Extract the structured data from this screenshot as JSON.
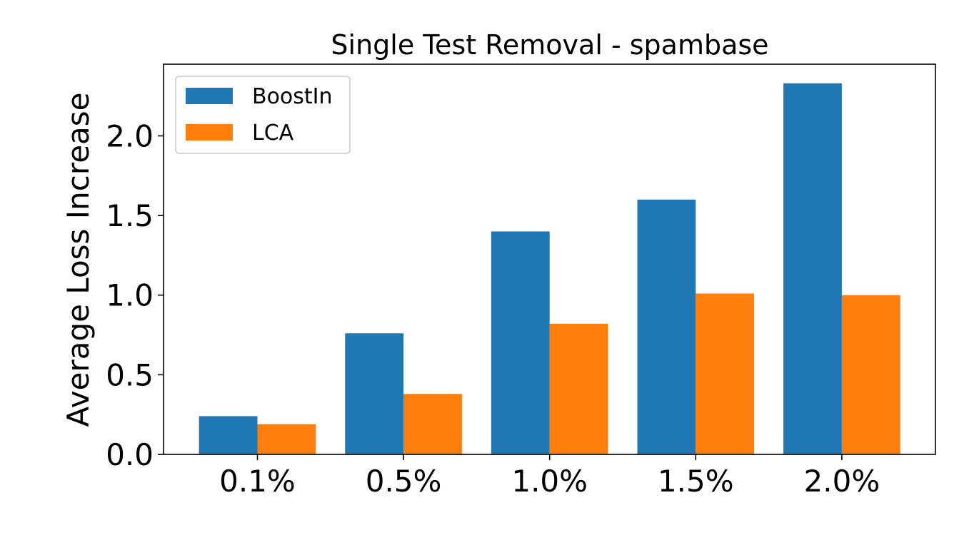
{
  "chart_data": {
    "type": "bar",
    "title": "Single Test Removal - spambase",
    "xlabel": "",
    "ylabel": "Average Loss Increase",
    "categories": [
      "0.1%",
      "0.5%",
      "1.0%",
      "1.5%",
      "2.0%"
    ],
    "series": [
      {
        "name": "BoostIn",
        "color": "#1f77b4",
        "values": [
          0.24,
          0.76,
          1.4,
          1.6,
          2.33
        ]
      },
      {
        "name": "LCA",
        "color": "#ff7f0e",
        "values": [
          0.19,
          0.38,
          0.82,
          1.01,
          1.0
        ]
      }
    ],
    "ylim": [
      0,
      2.45
    ],
    "yticks": [
      0.0,
      0.5,
      1.0,
      1.5,
      2.0
    ],
    "ytick_labels": [
      "0.0",
      "0.5",
      "1.0",
      "1.5",
      "2.0"
    ],
    "grid": false,
    "legend_position": "top-left"
  }
}
